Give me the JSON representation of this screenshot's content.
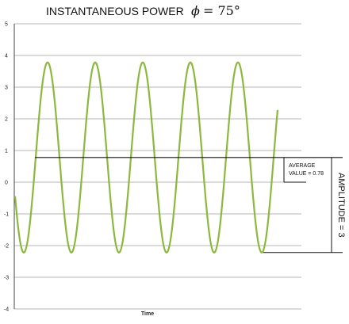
{
  "chart_data": {
    "type": "line",
    "title": "INSTANTANEOUS POWER",
    "phi_symbol": "ϕ",
    "phi_value": "= 75°",
    "xlabel": "Time",
    "ylabel": "",
    "ylim": [
      -4,
      5
    ],
    "yticks": [
      "5",
      "4",
      "3",
      "2",
      "1",
      "0",
      "-1",
      "-2",
      "-3",
      "-4"
    ],
    "grid": true,
    "series": [
      {
        "color": "#8DB83F",
        "formula": "0.78 + 3*cos(2*omega*t - phi)",
        "average": 0.78,
        "amplitude": 3,
        "max": 3.78,
        "min": -2.22,
        "peaks": 5
      }
    ],
    "annotations": {
      "average": "AVERAGE\nVALUE = 0.78",
      "amplitude": "AMPLITUDE = 3"
    }
  }
}
